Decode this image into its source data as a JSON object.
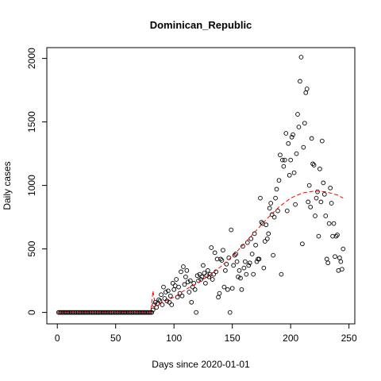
{
  "chart_data": {
    "type": "scatter",
    "title": "Dominican_Republic",
    "x_label": "Days since 2020-01-01",
    "y_label": "Daily cases",
    "xlim": [
      -9,
      255
    ],
    "ylim": [
      -90,
      2085
    ],
    "xticks": [
      0,
      50,
      100,
      150,
      200,
      250
    ],
    "yticks": [
      0,
      500,
      1000,
      1500,
      2000
    ],
    "series": [
      {
        "color": "#000000",
        "x": [
          1,
          2,
          3,
          4,
          5,
          6,
          7,
          8,
          9,
          10,
          11,
          12,
          13,
          14,
          15,
          16,
          17,
          18,
          19,
          20,
          21,
          22,
          23,
          24,
          25,
          26,
          27,
          28,
          29,
          30,
          31,
          32,
          33,
          34,
          35,
          36,
          37,
          38,
          39,
          40,
          41,
          42,
          43,
          44,
          45,
          46,
          47,
          48,
          49,
          50,
          51,
          52,
          53,
          54,
          55,
          56,
          57,
          58,
          59,
          60,
          61,
          62,
          63,
          64,
          65,
          66,
          67,
          68,
          69,
          70,
          71,
          72,
          73,
          74,
          75,
          76,
          77,
          78,
          79,
          80,
          81,
          82,
          83,
          84,
          85,
          86,
          87,
          88,
          89,
          90,
          91,
          92,
          93,
          94,
          95,
          96,
          97,
          98,
          99,
          100,
          101,
          102,
          103,
          104,
          105,
          106,
          107,
          108,
          109,
          110,
          111,
          112,
          113,
          114,
          115,
          116,
          117,
          118,
          119,
          120,
          121,
          122,
          123,
          124,
          125,
          126,
          127,
          128,
          129,
          130,
          131,
          132,
          133,
          134,
          135,
          136,
          137,
          138,
          139,
          140,
          141,
          142,
          143,
          144,
          145,
          146,
          147,
          148,
          149,
          150,
          151,
          152,
          153,
          154,
          155,
          156,
          157,
          158,
          159,
          160,
          161,
          162,
          163,
          164,
          165,
          166,
          167,
          168,
          169,
          170,
          171,
          172,
          173,
          174,
          175,
          176,
          177,
          178,
          179,
          180,
          181,
          182,
          183,
          184,
          185,
          186,
          187,
          188,
          189,
          190,
          191,
          192,
          193,
          194,
          195,
          196,
          197,
          198,
          199,
          200,
          201,
          202,
          203,
          204,
          205,
          206,
          207,
          208,
          209,
          210,
          211,
          212,
          213,
          214,
          215,
          216,
          217,
          218,
          219,
          220,
          221,
          222,
          223,
          224,
          225,
          226,
          227,
          228,
          229,
          230,
          231,
          232,
          233,
          234,
          235,
          236,
          237,
          238,
          239,
          240,
          241,
          242,
          243,
          244,
          245
        ],
        "values": [
          0,
          0,
          0,
          0,
          0,
          0,
          0,
          0,
          0,
          0,
          0,
          0,
          0,
          0,
          0,
          0,
          0,
          0,
          0,
          0,
          0,
          0,
          0,
          0,
          0,
          0,
          0,
          0,
          0,
          0,
          0,
          0,
          0,
          0,
          0,
          0,
          0,
          0,
          0,
          0,
          0,
          0,
          0,
          0,
          0,
          0,
          0,
          0,
          0,
          0,
          0,
          0,
          0,
          0,
          0,
          0,
          0,
          0,
          0,
          0,
          0,
          0,
          0,
          0,
          0,
          0,
          0,
          0,
          0,
          0,
          0,
          0,
          0,
          0,
          0,
          0,
          0,
          0,
          0,
          0,
          0,
          20,
          60,
          80,
          40,
          70,
          100,
          90,
          140,
          60,
          200,
          110,
          160,
          90,
          170,
          80,
          130,
          60,
          230,
          180,
          210,
          260,
          120,
          200,
          150,
          320,
          130,
          360,
          220,
          280,
          330,
          240,
          160,
          250,
          80,
          200,
          230,
          180,
          0,
          290,
          250,
          300,
          260,
          280,
          370,
          310,
          230,
          290,
          330,
          280,
          300,
          510,
          260,
          300,
          470,
          320,
          420,
          120,
          150,
          420,
          410,
          490,
          200,
          330,
          380,
          180,
          430,
          0,
          650,
          190,
          370,
          450,
          460,
          400,
          280,
          330,
          270,
          180,
          520,
          350,
          400,
          300,
          550,
          370,
          390,
          580,
          460,
          300,
          620,
          530,
          400,
          420,
          420,
          900,
          710,
          700,
          350,
          560,
          690,
          580,
          620,
          820,
          860,
          770,
          450,
          750,
          900,
          970,
          800,
          1040,
          1240,
          300,
          1200,
          1150,
          1200,
          1410,
          800,
          1330,
          1080,
          1200,
          1380,
          1400,
          1100,
          850,
          1250,
          1560,
          1460,
          1820,
          2010,
          540,
          1300,
          1490,
          1730,
          1760,
          870,
          1000,
          830,
          1370,
          1170,
          1160,
          760,
          900,
          950,
          600,
          1130,
          870,
          1350,
          1020,
          930,
          760,
          420,
          390,
          700,
          980,
          860,
          600,
          700,
          440,
          600,
          610,
          330,
          430,
          400,
          340,
          500
        ]
      },
      {
        "color": "#ff0000",
        "line": true,
        "x": [
          1,
          80,
          82,
          84,
          90,
          100,
          110,
          120,
          130,
          140,
          150,
          160,
          170,
          180,
          190,
          200,
          210,
          220,
          230,
          240,
          245
        ],
        "values": [
          0,
          0,
          170,
          50,
          80,
          120,
          180,
          230,
          290,
          360,
          440,
          540,
          640,
          740,
          830,
          900,
          940,
          955,
          950,
          925,
          900
        ]
      }
    ]
  }
}
